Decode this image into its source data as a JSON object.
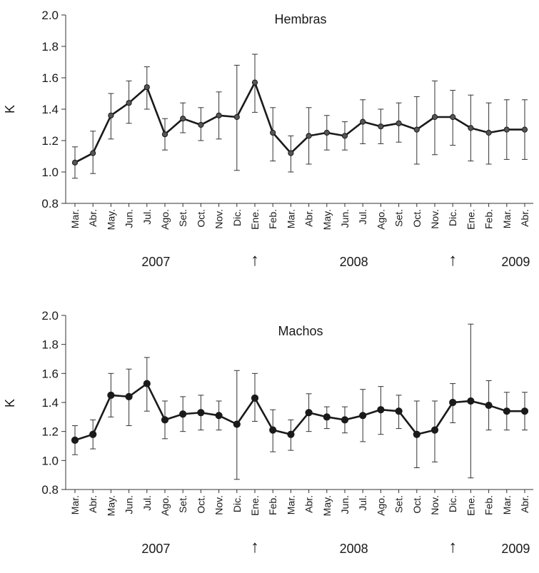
{
  "chart_data": [
    {
      "type": "line",
      "title": "Hembras",
      "xlabel": "",
      "ylabel": "K",
      "ylim": [
        0.8,
        2.0
      ],
      "yticks": [
        "0.8",
        "1.0",
        "1.2",
        "1.4",
        "1.6",
        "1.8",
        "2.0"
      ],
      "grid": false,
      "categories": [
        "Mar.",
        "Abr.",
        "May.",
        "Jun.",
        "Jul.",
        "Ago.",
        "Set.",
        "Oct.",
        "Nov.",
        "Dic.",
        "Ene.",
        "Feb.",
        "Mar.",
        "Abr.",
        "May.",
        "Jun.",
        "Jul.",
        "Ago.",
        "Set.",
        "Oct.",
        "Nov.",
        "Dic.",
        "Ene.",
        "Feb.",
        "Mar.",
        "Abr."
      ],
      "values": [
        1.06,
        1.12,
        1.36,
        1.44,
        1.54,
        1.24,
        1.34,
        1.3,
        1.36,
        1.35,
        1.57,
        1.25,
        1.12,
        1.23,
        1.25,
        1.23,
        1.32,
        1.29,
        1.31,
        1.27,
        1.35,
        1.35,
        1.28,
        1.25,
        1.27,
        1.27
      ],
      "err_low": [
        0.96,
        0.99,
        1.21,
        1.31,
        1.4,
        1.14,
        1.25,
        1.2,
        1.21,
        1.01,
        1.38,
        1.07,
        1.0,
        1.05,
        1.14,
        1.14,
        1.18,
        1.18,
        1.19,
        1.05,
        1.11,
        1.17,
        1.07,
        1.05,
        1.08,
        1.08
      ],
      "err_high": [
        1.16,
        1.26,
        1.5,
        1.58,
        1.67,
        1.34,
        1.44,
        1.41,
        1.51,
        1.68,
        1.75,
        1.41,
        1.23,
        1.41,
        1.36,
        1.32,
        1.46,
        1.4,
        1.44,
        1.48,
        1.58,
        1.52,
        1.49,
        1.44,
        1.46,
        1.46
      ],
      "years": [
        {
          "label": "2007",
          "center_index": 4.5
        },
        {
          "label": "2008",
          "center_index": 15.5
        },
        {
          "label": "2009",
          "center_index": 24.5
        }
      ],
      "arrows": [
        {
          "index": 10
        },
        {
          "index": 21
        }
      ],
      "arrow_glyph": "↑",
      "marker": "small-circle",
      "line_color": "#1a1a1a",
      "marker_color": "#555555"
    },
    {
      "type": "line",
      "title": "Machos",
      "xlabel": "",
      "ylabel": "K",
      "ylim": [
        0.8,
        2.0
      ],
      "yticks": [
        "0.8",
        "1.0",
        "1.2",
        "1.4",
        "1.6",
        "1.8",
        "2.0"
      ],
      "grid": false,
      "categories": [
        "Mar.",
        "Abr.",
        "May.",
        "Jun.",
        "Jul.",
        "Ago.",
        "Set.",
        "Oct.",
        "Nov.",
        "Dic.",
        "Ene.",
        "Feb.",
        "Mar.",
        "Abr.",
        "May.",
        "Jun.",
        "Jul.",
        "Ago.",
        "Set.",
        "Oct.",
        "Nov.",
        "Dic.",
        "Ene.",
        "Feb.",
        "Mar.",
        "Abr."
      ],
      "values": [
        1.14,
        1.18,
        1.45,
        1.44,
        1.53,
        1.28,
        1.32,
        1.33,
        1.31,
        1.25,
        1.43,
        1.21,
        1.18,
        1.33,
        1.3,
        1.28,
        1.31,
        1.35,
        1.34,
        1.18,
        1.21,
        1.4,
        1.41,
        1.38,
        1.34,
        1.34
      ],
      "err_low": [
        1.04,
        1.08,
        1.3,
        1.24,
        1.34,
        1.15,
        1.2,
        1.21,
        1.21,
        0.87,
        1.27,
        1.06,
        1.07,
        1.2,
        1.22,
        1.19,
        1.13,
        1.18,
        1.22,
        0.95,
        0.99,
        1.26,
        0.88,
        1.21,
        1.21,
        1.21
      ],
      "err_high": [
        1.24,
        1.28,
        1.6,
        1.63,
        1.71,
        1.41,
        1.44,
        1.45,
        1.41,
        1.62,
        1.6,
        1.35,
        1.28,
        1.46,
        1.37,
        1.37,
        1.49,
        1.51,
        1.45,
        1.41,
        1.41,
        1.53,
        1.94,
        1.55,
        1.47,
        1.47
      ],
      "years": [
        {
          "label": "2007",
          "center_index": 4.5
        },
        {
          "label": "2008",
          "center_index": 15.5
        },
        {
          "label": "2009",
          "center_index": 24.5
        }
      ],
      "arrows": [
        {
          "index": 10
        },
        {
          "index": 21
        }
      ],
      "arrow_glyph": "↑",
      "marker": "large-circle",
      "line_color": "#1a1a1a",
      "marker_color": "#1a1a1a"
    }
  ]
}
